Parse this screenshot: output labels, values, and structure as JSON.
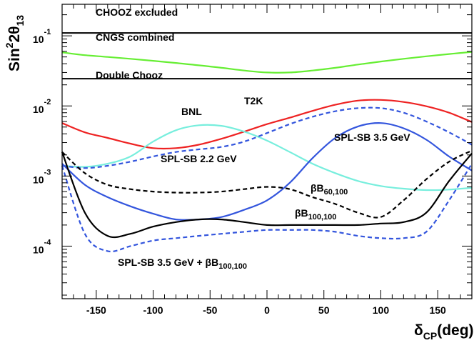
{
  "chart_data": {
    "type": "line",
    "title": "",
    "xlabel": {
      "main": "δ",
      "sub": "CP",
      "tail": "(deg)"
    },
    "ylabel": {
      "main": "Sin",
      "sup": "2",
      "mid": "2θ",
      "sub": "13"
    },
    "xlim": [
      -180,
      180
    ],
    "ylim_log10": [
      -4.75,
      -0.55
    ],
    "yscale": "log",
    "xticks": [
      -150,
      -100,
      -50,
      0,
      50,
      100,
      150
    ],
    "yticks": [
      {
        "base": "10",
        "exp": "-1",
        "log": -1
      },
      {
        "base": "10",
        "exp": "-2",
        "log": -2
      },
      {
        "base": "10",
        "exp": "-3",
        "log": -3
      },
      {
        "base": "10",
        "exp": "-4",
        "log": -4
      }
    ],
    "hlines": [
      {
        "name": "CHOOZ excluded",
        "y": 0.11,
        "color": "#000000"
      },
      {
        "name": "Double Chooz",
        "y": 0.0245,
        "color": "#000000"
      }
    ],
    "x": [
      -180,
      -160,
      -140,
      -120,
      -100,
      -80,
      -60,
      -40,
      -20,
      0,
      20,
      40,
      60,
      80,
      100,
      120,
      140,
      160,
      180
    ],
    "series": [
      {
        "name": "CNGS combined",
        "color": "#66ee33",
        "dash": false,
        "values": [
          0.058,
          0.053,
          0.05,
          0.047,
          0.044,
          0.041,
          0.038,
          0.035,
          0.032,
          0.03,
          0.03,
          0.032,
          0.035,
          0.039,
          0.043,
          0.047,
          0.051,
          0.055,
          0.059
        ]
      },
      {
        "name": "T2K",
        "color": "#ee2222",
        "dash": false,
        "values": [
          0.0057,
          0.0042,
          0.0035,
          0.0029,
          0.0025,
          0.0025,
          0.0028,
          0.0034,
          0.0043,
          0.0055,
          0.0068,
          0.0085,
          0.0104,
          0.0119,
          0.0122,
          0.0114,
          0.0099,
          0.008,
          0.0059
        ]
      },
      {
        "name": "BNL",
        "color": "#77eedd",
        "dash": false,
        "values": [
          0.0014,
          0.00135,
          0.0015,
          0.0019,
          0.0031,
          0.0045,
          0.0053,
          0.0052,
          0.0043,
          0.0032,
          0.0022,
          0.0015,
          0.0011,
          0.00085,
          0.00072,
          0.00066,
          0.00063,
          0.00064,
          0.00068
        ]
      },
      {
        "name": "SPL-SB 3.5 GeV",
        "color": "#3355dd",
        "dash": false,
        "values": [
          0.0015,
          0.00075,
          0.0005,
          0.00037,
          0.00029,
          0.00024,
          0.00024,
          0.00026,
          0.00033,
          0.00045,
          0.0008,
          0.0018,
          0.0035,
          0.0051,
          0.0057,
          0.0048,
          0.0033,
          0.0019,
          0.0012
        ]
      },
      {
        "name": "SPL-SB 2.2 GeV",
        "color": "#3355dd",
        "dash": true,
        "values": [
          0.0014,
          0.0013,
          0.0014,
          0.0016,
          0.0019,
          0.0022,
          0.0024,
          0.0026,
          0.0031,
          0.0041,
          0.0055,
          0.007,
          0.0084,
          0.0093,
          0.0093,
          0.008,
          0.006,
          0.0042,
          0.0028
        ]
      },
      {
        "name": "βB60,100",
        "color": "#000000",
        "dash": true,
        "values": [
          0.0022,
          0.0011,
          0.00075,
          0.00065,
          0.0006,
          0.00058,
          0.00058,
          0.0006,
          0.00065,
          0.0007,
          0.00065,
          0.0005,
          0.0004,
          0.0003,
          0.00026,
          0.00045,
          0.0009,
          0.0016,
          0.0023
        ]
      },
      {
        "name": "βB100,100",
        "color": "#000000",
        "dash": false,
        "values": [
          0.0022,
          0.0003,
          0.00014,
          0.00015,
          0.00019,
          0.00022,
          0.00024,
          0.00024,
          0.00022,
          0.0002,
          0.0002,
          0.0002,
          0.0002,
          0.0002,
          0.00021,
          0.00022,
          0.0003,
          0.00085,
          0.0021
        ]
      },
      {
        "name": "SPL-SB 3.5 GeV + βB100,100",
        "color": "#3355dd",
        "dash": true,
        "values": [
          0.0014,
          0.00015,
          8.5e-05,
          0.0001,
          0.00012,
          0.00013,
          0.00014,
          0.00015,
          0.00016,
          0.00017,
          0.00017,
          0.00017,
          0.00016,
          0.00014,
          0.00013,
          0.00013,
          0.00016,
          0.00045,
          0.0015
        ]
      }
    ],
    "annotations": {
      "chooz": "CHOOZ excluded",
      "cngs": "CNGS combined",
      "double_chooz": "Double Chooz",
      "bnl": "BNL",
      "t2k": "T2K",
      "spl35": "SPL-SB 3.5 GeV",
      "spl22": "SPL-SB 2.2 GeV",
      "beta60": {
        "main": "βB",
        "sub": "60,100"
      },
      "beta100": {
        "main": "βB",
        "sub": "100,100"
      },
      "combo": {
        "main": "SPL-SB 3.5 GeV + βB",
        "sub": "100,100"
      }
    }
  }
}
